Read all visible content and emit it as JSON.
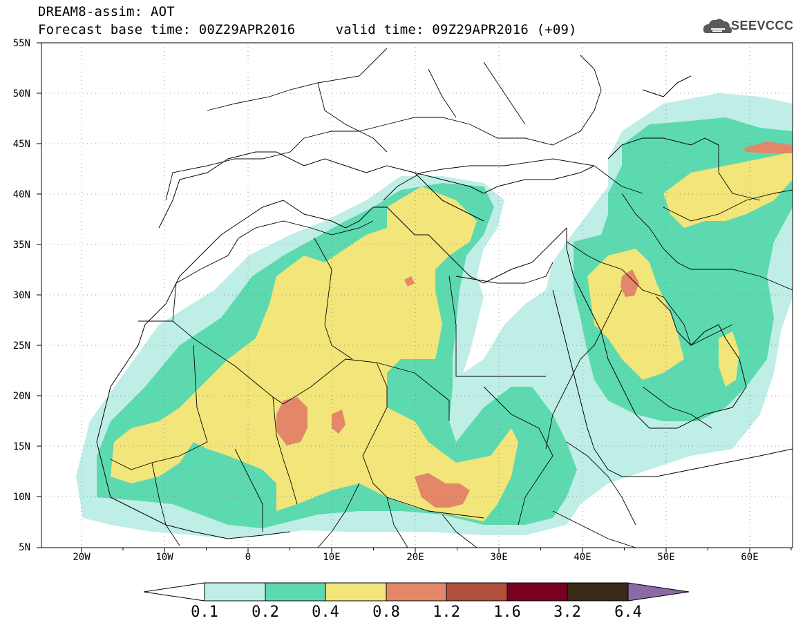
{
  "header": {
    "model_line": "DREAM8-assim: AOT",
    "forecast_line": "Forecast base time: 00Z29APR2016     valid time: 09Z29APR2016 (+09)",
    "logo_text": "SEEVCCC"
  },
  "axes": {
    "lat_labels": [
      "55N",
      "50N",
      "45N",
      "40N",
      "35N",
      "30N",
      "25N",
      "20N",
      "15N",
      "10N",
      "5N"
    ],
    "lon_labels": [
      "20W",
      "10W",
      "0",
      "10E",
      "20E",
      "30E",
      "40E",
      "50E",
      "60E"
    ]
  },
  "legend": {
    "levels": [
      "0.1",
      "0.2",
      "0.4",
      "0.8",
      "1.2",
      "1.6",
      "3.2",
      "6.4"
    ],
    "colors": [
      "#ffffff",
      "#bfeee6",
      "#5dd9b0",
      "#f2e57a",
      "#e48668",
      "#b14f3f",
      "#7a0021",
      "#3a2a18",
      "#8c6aa6"
    ]
  },
  "icons": {
    "logo": "cloud-logo-icon"
  }
}
